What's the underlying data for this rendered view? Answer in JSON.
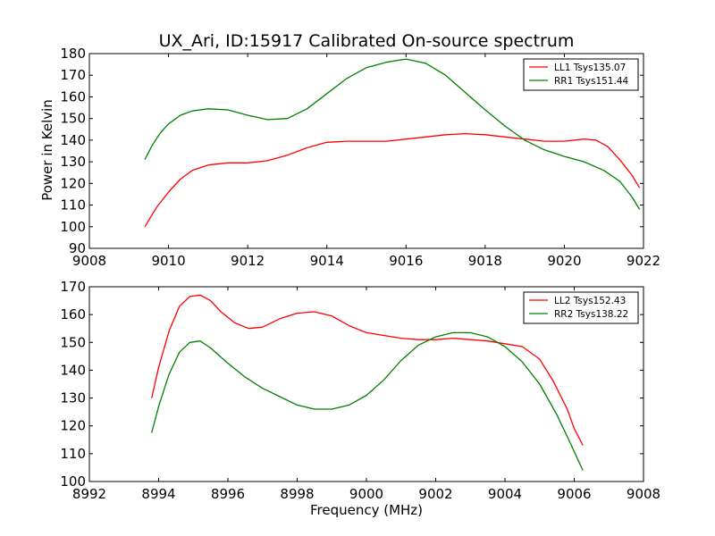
{
  "figure": {
    "title": "UX_Ari, ID:15917 Calibrated On-source spectrum",
    "ylabel": "Power in Kelvin",
    "xlabel": "Frequency (MHz)"
  },
  "chart_data": [
    {
      "type": "line",
      "title": "UX_Ari, ID:15917 Calibrated On-source spectrum",
      "xlabel": "",
      "ylabel": "Power in Kelvin",
      "xlim": [
        9008,
        9022
      ],
      "ylim": [
        90,
        180
      ],
      "xticks": [
        9008,
        9010,
        9012,
        9014,
        9016,
        9018,
        9020,
        9022
      ],
      "yticks": [
        90,
        100,
        110,
        120,
        130,
        140,
        150,
        160,
        170,
        180
      ],
      "grid": false,
      "legend": "top-right",
      "series": [
        {
          "name": "LL1 Tsys135.07",
          "color": "#ff0000",
          "x": [
            9009.4,
            9009.7,
            9010.0,
            9010.3,
            9010.6,
            9011.0,
            9011.5,
            9012.0,
            9012.5,
            9013.0,
            9013.5,
            9014.0,
            9014.5,
            9015.0,
            9015.5,
            9016.0,
            9016.5,
            9017.0,
            9017.5,
            9018.0,
            9018.5,
            9019.0,
            9019.5,
            9020.0,
            9020.5,
            9020.8,
            9021.1,
            9021.4,
            9021.7,
            9021.9
          ],
          "y": [
            100,
            109,
            116,
            122,
            126,
            128.5,
            129.5,
            129.5,
            130.5,
            133,
            136.5,
            139,
            139.5,
            139.5,
            139.5,
            140.5,
            141.5,
            142.5,
            143,
            142.5,
            141.5,
            140.5,
            139.5,
            139.5,
            140.5,
            140,
            137,
            131,
            124,
            118
          ]
        },
        {
          "name": "RR1 Tsys151.44",
          "color": "#008000",
          "x": [
            9009.4,
            9009.6,
            9009.8,
            9010.0,
            9010.3,
            9010.6,
            9011.0,
            9011.5,
            9012.0,
            9012.5,
            9013.0,
            9013.5,
            9014.0,
            9014.5,
            9015.0,
            9015.5,
            9016.0,
            9016.5,
            9017.0,
            9017.5,
            9018.0,
            9018.5,
            9019.0,
            9019.5,
            9020.0,
            9020.5,
            9021.0,
            9021.4,
            9021.7,
            9021.9
          ],
          "y": [
            131,
            138,
            143.5,
            147.5,
            151.5,
            153.5,
            154.5,
            154,
            151.5,
            149.5,
            150,
            154.5,
            161.5,
            168.5,
            173.5,
            176,
            177.5,
            175.5,
            170,
            162,
            154,
            146.5,
            140,
            135.5,
            132.5,
            130,
            126,
            121,
            114,
            108
          ]
        }
      ]
    },
    {
      "type": "line",
      "title": "",
      "xlabel": "Frequency (MHz)",
      "ylabel": "",
      "xlim": [
        8992,
        9008
      ],
      "ylim": [
        100,
        170
      ],
      "xticks": [
        8992,
        8994,
        8996,
        8998,
        9000,
        9002,
        9004,
        9006,
        9008
      ],
      "yticks": [
        100,
        110,
        120,
        130,
        140,
        150,
        160,
        170
      ],
      "grid": false,
      "legend": "top-right",
      "series": [
        {
          "name": "LL2 Tsys152.43",
          "color": "#ff0000",
          "x": [
            8993.8,
            8994.0,
            8994.3,
            8994.6,
            8994.9,
            8995.2,
            8995.5,
            8995.8,
            8996.2,
            8996.6,
            8997.0,
            8997.5,
            8998.0,
            8998.5,
            8999.0,
            8999.5,
            9000.0,
            9000.5,
            9001.0,
            9001.5,
            9002.0,
            9002.5,
            9003.0,
            9003.5,
            9004.0,
            9004.5,
            9005.0,
            9005.4,
            9005.8,
            9006.0,
            9006.25
          ],
          "y": [
            130,
            141,
            154,
            163,
            166.5,
            167,
            165,
            161,
            157,
            155,
            155.5,
            158.5,
            160.5,
            161,
            159.5,
            156,
            153.5,
            152.5,
            151.5,
            151,
            151,
            151.5,
            151,
            150.5,
            149.5,
            148.5,
            144,
            136,
            126,
            119,
            113
          ]
        },
        {
          "name": "RR2 Tsys138.22",
          "color": "#008000",
          "x": [
            8993.8,
            8994.0,
            8994.3,
            8994.6,
            8994.9,
            8995.2,
            8995.5,
            8996.0,
            8996.5,
            8997.0,
            8997.5,
            8998.0,
            8998.5,
            8999.0,
            8999.5,
            9000.0,
            9000.5,
            9001.0,
            9001.5,
            9002.0,
            9002.5,
            9003.0,
            9003.5,
            9004.0,
            9004.5,
            9005.0,
            9005.5,
            9005.9,
            9006.1,
            9006.25
          ],
          "y": [
            117.5,
            127,
            138.5,
            146.5,
            150,
            150.5,
            148,
            142.5,
            137.5,
            133.5,
            130.5,
            127.5,
            126,
            126,
            127.5,
            131,
            136.5,
            143.5,
            149,
            152,
            153.5,
            153.5,
            152,
            148.5,
            143,
            135,
            124,
            113.5,
            108,
            104
          ]
        }
      ]
    }
  ]
}
